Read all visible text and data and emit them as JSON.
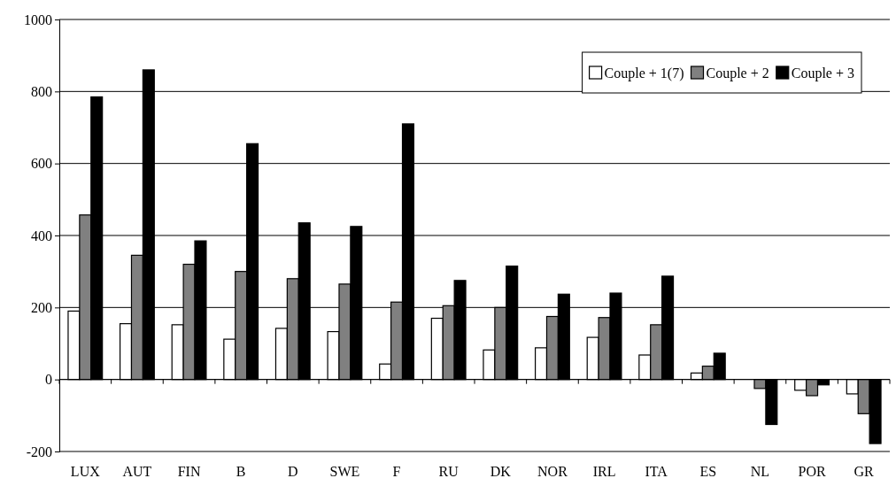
{
  "chart_data": {
    "type": "bar",
    "categories": [
      "LUX",
      "AUT",
      "FIN",
      "B",
      "D",
      "SWE",
      "F",
      "RU",
      "DK",
      "NOR",
      "IRL",
      "ITA",
      "ES",
      "NL",
      "POR",
      "GR"
    ],
    "series": [
      {
        "name": "Couple + 1(7)",
        "color": "#ffffff",
        "values": [
          190,
          155,
          152,
          112,
          142,
          133,
          43,
          170,
          82,
          88,
          117,
          68,
          18,
          null,
          -30,
          -40
        ]
      },
      {
        "name": "Couple + 2",
        "color": "#808080",
        "values": [
          457,
          345,
          320,
          300,
          280,
          265,
          215,
          205,
          200,
          175,
          172,
          152,
          37,
          -25,
          -45,
          -95
        ]
      },
      {
        "name": "Couple + 3",
        "color": "#000000",
        "values": [
          785,
          860,
          385,
          655,
          435,
          425,
          710,
          275,
          315,
          237,
          240,
          287,
          73,
          -125,
          -15,
          -178
        ]
      }
    ],
    "ylim": [
      -200,
      1000
    ],
    "yticks": [
      -200,
      0,
      200,
      400,
      600,
      800,
      1000
    ],
    "grid": "y",
    "legend": "top right"
  }
}
